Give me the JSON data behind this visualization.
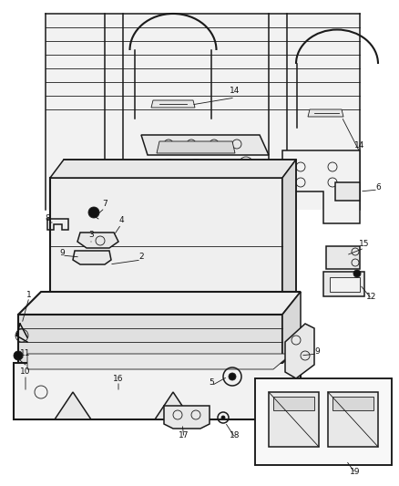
{
  "bg_color": "#ffffff",
  "line_color": "#1a1a1a",
  "dark_color": "#111111",
  "gray_fill": "#e8e8e8",
  "light_fill": "#f2f2f2",
  "mid_fill": "#d8d8d8",
  "figsize": [
    4.38,
    5.33
  ],
  "dpi": 100,
  "lw_main": 1.1,
  "lw_thin": 0.6,
  "lw_thick": 1.5,
  "label_fontsize": 6.5
}
